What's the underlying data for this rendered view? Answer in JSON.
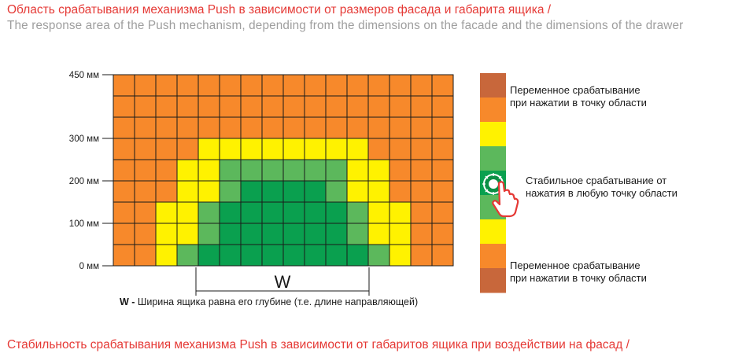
{
  "title_ru": "Область срабатывания механизма Push в зависимости от размеров фасада и габарита ящика /",
  "title_en": "The response area of the Push mechanism, depending from the dimensions on the facade and the dimensions of the drawer",
  "footer_ru": "Стабильность срабатывания механизма Push в зависимости от габаритов ящика при воздействии на фасад /",
  "y_axis": {
    "labels": [
      "450 мм",
      "300 мм",
      "200 мм",
      "100 мм",
      "0 мм"
    ]
  },
  "width_marker": "W",
  "width_caption_bold": "W -",
  "width_caption": " Ширина ящика равна его глубине (т.е. длине направляющей)",
  "legend": {
    "variable_top": [
      "Переменное срабатывание",
      "при нажатии в точку области"
    ],
    "stable": [
      "Стабильное срабатывание от",
      "нажатия в любую точку области"
    ],
    "variable_bottom": [
      "Переменное срабатывание",
      "при нажатии в точку области"
    ]
  },
  "colors": {
    "orange": "#f7892b",
    "yellow": "#fff200",
    "light_green": "#5cb85c",
    "green": "#0aa04f",
    "brown": "#c8673b",
    "title_red": "#e53935"
  },
  "grid": {
    "rows": [
      "OOOOOOOOOOOOOOOO",
      "OOOOOOOOOOOOOOOO",
      "OOOOOOOOOOOOOOOO",
      "OOOOYYYYYYYYOOOO",
      "OOOYYLLLLLLYYOOO",
      "OOOYYLGGGGLYYOOO",
      "OOYYLGGGGGGLYYOO",
      "OOYYLGGGGGGLYYOO",
      "OOYLGGGGGGGGLYOO"
    ]
  },
  "legend_bar": [
    "brown",
    "orange",
    "yellow",
    "light_green",
    "green",
    "light_green",
    "yellow",
    "orange",
    "brown"
  ]
}
